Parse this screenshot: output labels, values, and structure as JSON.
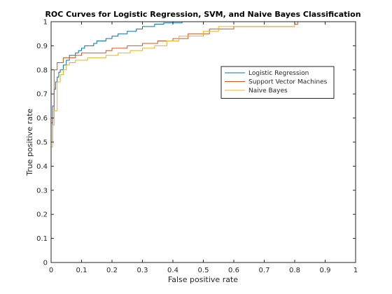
{
  "chart_data": {
    "type": "line",
    "title": "ROC Curves for Logistic Regression, SVM, and Naive Bayes Classification",
    "xlabel": "False positive rate",
    "ylabel": "True positive rate",
    "xlim": [
      0,
      1
    ],
    "ylim": [
      0,
      1
    ],
    "xticks": [
      "0",
      "0.1",
      "0.2",
      "0.3",
      "0.4",
      "0.5",
      "0.6",
      "0.7",
      "0.8",
      "0.9",
      "1"
    ],
    "yticks": [
      "0",
      "0.1",
      "0.2",
      "0.3",
      "0.4",
      "0.5",
      "0.6",
      "0.7",
      "0.8",
      "0.9",
      "1"
    ],
    "grid": false,
    "legend_position": "upper-right",
    "series": [
      {
        "name": "Logistic Regression",
        "color": "#0072BD",
        "x": [
          0,
          0,
          0.005,
          0.005,
          0.01,
          0.01,
          0.015,
          0.015,
          0.02,
          0.02,
          0.025,
          0.025,
          0.03,
          0.03,
          0.04,
          0.04,
          0.05,
          0.05,
          0.06,
          0.06,
          0.08,
          0.08,
          0.09,
          0.09,
          0.1,
          0.1,
          0.11,
          0.11,
          0.14,
          0.14,
          0.15,
          0.15,
          0.18,
          0.18,
          0.2,
          0.2,
          0.22,
          0.22,
          0.25,
          0.25,
          0.28,
          0.28,
          0.3,
          0.3,
          0.34,
          0.34,
          0.37,
          0.37,
          0.43,
          0.43,
          1
        ],
        "y": [
          0,
          0.5,
          0.5,
          0.65,
          0.65,
          0.72,
          0.72,
          0.75,
          0.75,
          0.77,
          0.77,
          0.79,
          0.79,
          0.8,
          0.8,
          0.82,
          0.82,
          0.84,
          0.84,
          0.86,
          0.86,
          0.87,
          0.87,
          0.88,
          0.88,
          0.89,
          0.89,
          0.9,
          0.9,
          0.91,
          0.91,
          0.92,
          0.92,
          0.93,
          0.93,
          0.94,
          0.94,
          0.95,
          0.95,
          0.96,
          0.96,
          0.97,
          0.97,
          0.98,
          0.98,
          0.99,
          0.99,
          0.995,
          0.995,
          1,
          1
        ]
      },
      {
        "name": "Support Vector Machines",
        "color": "#D95319",
        "x": [
          0,
          0,
          0.005,
          0.005,
          0.01,
          0.01,
          0.02,
          0.02,
          0.04,
          0.04,
          0.08,
          0.08,
          0.1,
          0.1,
          0.18,
          0.18,
          0.2,
          0.2,
          0.25,
          0.25,
          0.3,
          0.3,
          0.35,
          0.35,
          0.4,
          0.4,
          0.45,
          0.45,
          0.52,
          0.52,
          0.6,
          0.6,
          0.8,
          0.8,
          0.81,
          0.81,
          1
        ],
        "y": [
          0,
          0.58,
          0.58,
          0.6,
          0.6,
          0.8,
          0.8,
          0.83,
          0.83,
          0.85,
          0.85,
          0.86,
          0.86,
          0.87,
          0.87,
          0.88,
          0.88,
          0.89,
          0.89,
          0.9,
          0.9,
          0.91,
          0.91,
          0.92,
          0.92,
          0.93,
          0.93,
          0.95,
          0.95,
          0.97,
          0.97,
          0.98,
          0.98,
          0.99,
          0.99,
          1,
          1
        ]
      },
      {
        "name": "Naive Bayes",
        "color": "#EDB120",
        "x": [
          0,
          0,
          0.005,
          0.005,
          0.01,
          0.01,
          0.02,
          0.02,
          0.03,
          0.03,
          0.04,
          0.04,
          0.05,
          0.05,
          0.06,
          0.06,
          0.08,
          0.08,
          0.12,
          0.12,
          0.18,
          0.18,
          0.22,
          0.22,
          0.26,
          0.26,
          0.3,
          0.3,
          0.34,
          0.34,
          0.38,
          0.38,
          0.42,
          0.42,
          0.5,
          0.5,
          0.55,
          0.55,
          0.8,
          0.8,
          1
        ],
        "y": [
          0,
          0.48,
          0.48,
          0.57,
          0.57,
          0.63,
          0.63,
          0.75,
          0.75,
          0.78,
          0.78,
          0.8,
          0.8,
          0.82,
          0.82,
          0.83,
          0.83,
          0.84,
          0.84,
          0.85,
          0.85,
          0.86,
          0.86,
          0.87,
          0.87,
          0.88,
          0.88,
          0.89,
          0.89,
          0.9,
          0.9,
          0.92,
          0.92,
          0.94,
          0.94,
          0.96,
          0.96,
          0.98,
          0.98,
          1,
          1
        ]
      }
    ]
  }
}
